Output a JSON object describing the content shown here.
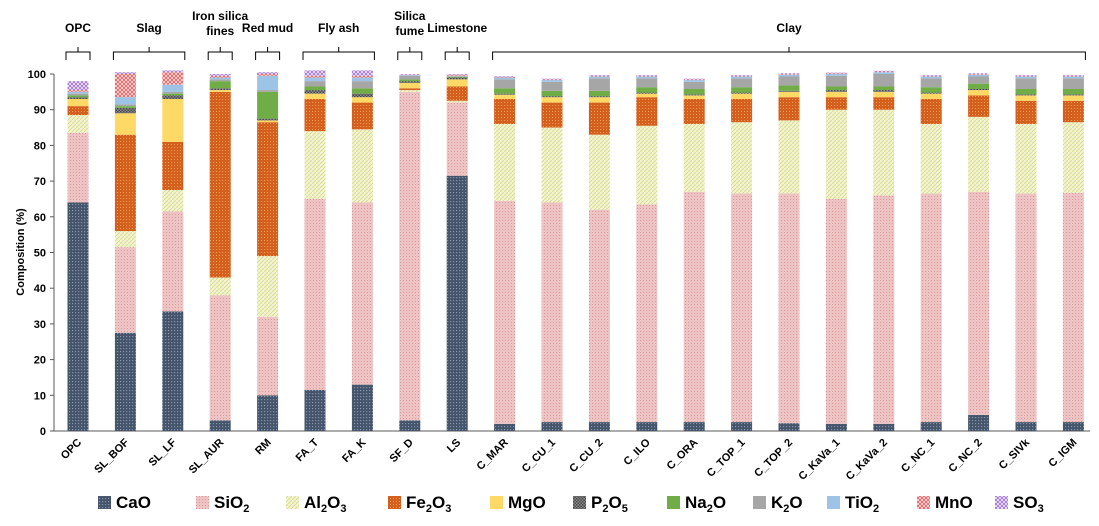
{
  "chart_data": {
    "type": "bar",
    "stacked": true,
    "ylabel": "Composition (%)",
    "ylim": [
      0,
      100
    ],
    "yticks": [
      "0",
      "10",
      "20",
      "30",
      "40",
      "50",
      "60",
      "70",
      "80",
      "90",
      "100"
    ],
    "grid": false,
    "legend_position": "bottom",
    "categories": [
      "OPC",
      "SL_BOF",
      "SL_LF",
      "SL_AUR",
      "RM",
      "FA_T",
      "FA_K",
      "SF_D",
      "LS",
      "C_MAR",
      "C_CU_1",
      "C_CU_2",
      "C_ILO",
      "C_ORA",
      "C_TOP_1",
      "C_TOP_2",
      "C_KaVa_1",
      "C_KaVa_2",
      "C_NC_1",
      "C_NC_2",
      "C_SIVk",
      "C_IGM"
    ],
    "groups": [
      {
        "label": "OPC",
        "from": 0,
        "to": 0
      },
      {
        "label": "Slag",
        "from": 1,
        "to": 2
      },
      {
        "label": "Iron silica fines",
        "lines": [
          "Iron silica",
          "fines"
        ],
        "from": 3,
        "to": 3
      },
      {
        "label": "Red mud",
        "from": 4,
        "to": 4
      },
      {
        "label": "Fly ash",
        "from": 5,
        "to": 6
      },
      {
        "label": "Silica fume",
        "lines": [
          "Silica",
          "fume"
        ],
        "from": 7,
        "to": 7
      },
      {
        "label": "Limestone",
        "from": 8,
        "to": 8
      },
      {
        "label": "Clay",
        "from": 9,
        "to": 21
      }
    ],
    "series": [
      {
        "name": "CaO",
        "label_main": "CaO",
        "label_sub": "",
        "color": "#44546a",
        "pattern": "dots-dark",
        "values": [
          64,
          27.5,
          33.5,
          3,
          10,
          11.5,
          13,
          3,
          71.5,
          2,
          2.5,
          2.5,
          2.5,
          2.5,
          2.5,
          2.2,
          2,
          2,
          2.5,
          4.5,
          2.5,
          2.5
        ]
      },
      {
        "name": "SiO2",
        "label_main": "SiO",
        "label_sub": "2",
        "color": "#e8b4b4",
        "pattern": "dots-light",
        "values": [
          19.5,
          24,
          28,
          35,
          22,
          53.5,
          51,
          92,
          20.5,
          62.5,
          61.5,
          59.5,
          61,
          64.5,
          64,
          64.3,
          63,
          64,
          64,
          62.5,
          64,
          64.2
        ]
      },
      {
        "name": "Al2O3",
        "label_main": "Al",
        "label_sub": "2",
        "label_main2": "O",
        "label_sub2": "3",
        "color": "#eef0c0",
        "pattern": "diag",
        "values": [
          5,
          4.5,
          6,
          5,
          17,
          19,
          20.5,
          0.5,
          0.5,
          21.5,
          21,
          21,
          22,
          19,
          20,
          20.5,
          25,
          24,
          19.5,
          21,
          19.5,
          19.8
        ]
      },
      {
        "name": "Fe2O3",
        "label_main": "Fe",
        "label_sub": "2",
        "label_main2": "O",
        "label_sub2": "3",
        "color": "#d65f1c",
        "pattern": "dots-orange",
        "values": [
          2.5,
          27,
          13.5,
          52,
          37.5,
          9,
          7.5,
          0.5,
          4,
          7,
          7,
          9,
          8,
          7,
          6.5,
          6.5,
          3.5,
          3.5,
          7,
          6,
          6.5,
          6
        ]
      },
      {
        "name": "MgO",
        "label_main": "MgO",
        "label_sub": "",
        "color": "#ffd966",
        "pattern": "solid",
        "values": [
          2,
          6,
          12,
          0.5,
          0.5,
          1.5,
          1.5,
          1.5,
          2,
          1.2,
          1.5,
          1.5,
          1,
          1,
          1.5,
          1.5,
          1.5,
          1.5,
          1.5,
          1.5,
          1.5,
          1.5
        ]
      },
      {
        "name": "P2O5",
        "label_main": "P",
        "label_sub": "2",
        "label_main2": "O",
        "label_sub2": "5",
        "color": "#7f7f7f",
        "pattern": "checker",
        "values": [
          0.5,
          1.5,
          1,
          0.5,
          0.5,
          1,
          1,
          0.5,
          0.5,
          0.3,
          0.3,
          0.3,
          0.3,
          0.3,
          0.3,
          0.3,
          0.5,
          0.5,
          0.3,
          0.3,
          0.3,
          0.3
        ]
      },
      {
        "name": "Na2O",
        "label_main": "Na",
        "label_sub": "2",
        "label_main2": "O",
        "label_sub2": "",
        "color": "#70ad47",
        "pattern": "solid",
        "values": [
          0.5,
          0.5,
          0.5,
          2,
          7.5,
          1,
          1.5,
          0.5,
          0.2,
          1.5,
          1.5,
          1.5,
          1.5,
          1.5,
          1.5,
          1.5,
          1,
          1,
          1.5,
          1.5,
          1.5,
          1.5
        ]
      },
      {
        "name": "K2O",
        "label_main": "K",
        "label_sub": "2",
        "label_main2": "O",
        "label_sub2": "",
        "color": "#a6a6a6",
        "pattern": "solid",
        "values": [
          0.5,
          0.5,
          0.5,
          0.5,
          0.5,
          1.5,
          2,
          1,
          0.2,
          2.5,
          2.5,
          3.5,
          2.5,
          2,
          2.5,
          2.5,
          3,
          3.5,
          2.5,
          2,
          3,
          3
        ]
      },
      {
        "name": "TiO2",
        "label_main": "TiO",
        "label_sub": "2",
        "color": "#9dc3e6",
        "pattern": "solid",
        "values": [
          0.5,
          2,
          2,
          0.5,
          4,
          1,
          1,
          0.2,
          0.1,
          0.5,
          0.5,
          0.5,
          0.5,
          0.5,
          0.5,
          0.5,
          0.5,
          0.5,
          0.5,
          0.5,
          0.5,
          0.5
        ]
      },
      {
        "name": "MnO",
        "label_main": "MnO",
        "label_sub": "",
        "color": "#e05c5c",
        "pattern": "cross-red",
        "values": [
          0.5,
          6.5,
          3.5,
          0.5,
          0.5,
          0.5,
          0.5,
          0.1,
          0.3,
          0.2,
          0.2,
          0.2,
          0.2,
          0.2,
          0.2,
          0.2,
          0.2,
          0.2,
          0.2,
          0.2,
          0.2,
          0.2
        ]
      },
      {
        "name": "SO3",
        "label_main": "SO",
        "label_sub": "3",
        "color": "#b48ad8",
        "pattern": "cross-purple",
        "values": [
          2.5,
          0.5,
          0.5,
          0.5,
          0.5,
          1.5,
          1.5,
          0.2,
          0.2,
          0.2,
          0.2,
          0.2,
          0.2,
          0.2,
          0.2,
          0.2,
          0.2,
          0.2,
          0.2,
          0.2,
          0.2,
          0.2
        ]
      }
    ]
  }
}
